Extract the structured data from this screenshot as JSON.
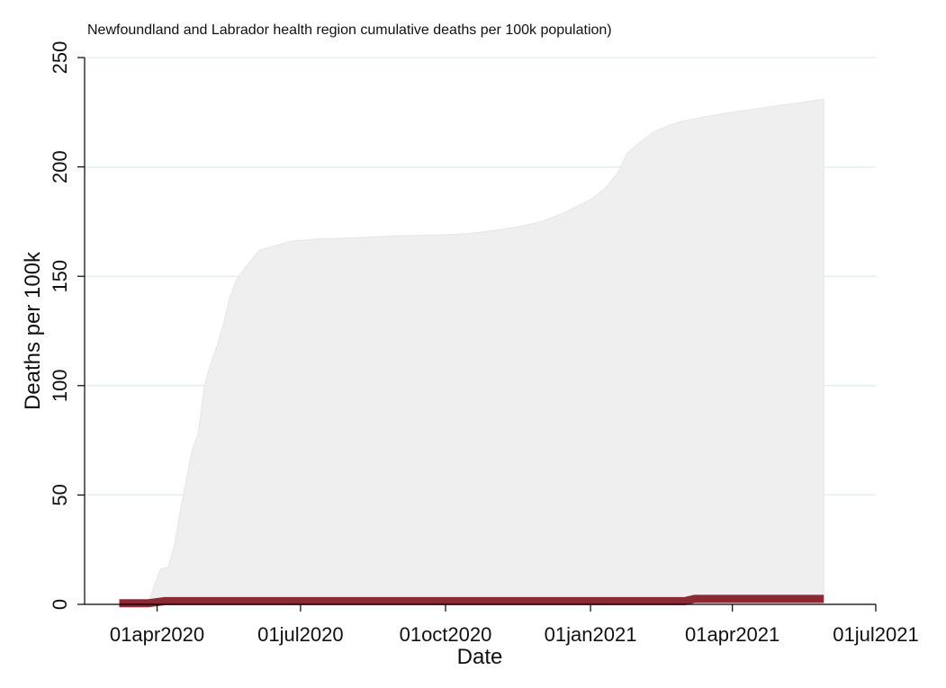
{
  "chart_data": {
    "type": "area",
    "title": "Newfoundland and Labrador health region cumulative deaths per 100k population)",
    "xlabel": "Date",
    "ylabel": "Deaths per 100k",
    "xlim": [
      "2020-02-15",
      "2021-07-01"
    ],
    "ylim": [
      0,
      250
    ],
    "x_ticks": [
      {
        "date": "2020-04-01",
        "label": "01apr2020"
      },
      {
        "date": "2020-07-01",
        "label": "01jul2020"
      },
      {
        "date": "2020-10-01",
        "label": "01oct2020"
      },
      {
        "date": "2021-01-01",
        "label": "01jan2021"
      },
      {
        "date": "2021-04-01",
        "label": "01apr2021"
      },
      {
        "date": "2021-07-01",
        "label": "01jul2021"
      }
    ],
    "y_ticks": [
      0,
      50,
      100,
      150,
      200,
      250
    ],
    "grid": true,
    "colors": {
      "area": "#efefef",
      "area_edge": "#e6e6e6",
      "line": "#8b2a35",
      "grid": "#e3eef0",
      "axis": "#000000"
    },
    "series": [
      {
        "kind": "area",
        "points": [
          [
            "2020-03-26",
            0
          ],
          [
            "2020-03-28",
            4
          ],
          [
            "2020-03-31",
            10
          ],
          [
            "2020-04-03",
            16
          ],
          [
            "2020-04-08",
            17
          ],
          [
            "2020-04-12",
            27
          ],
          [
            "2020-04-15",
            40
          ],
          [
            "2020-04-19",
            55
          ],
          [
            "2020-04-23",
            70
          ],
          [
            "2020-04-27",
            78
          ],
          [
            "2020-05-01",
            100
          ],
          [
            "2020-05-05",
            110
          ],
          [
            "2020-05-09",
            118
          ],
          [
            "2020-05-13",
            128
          ],
          [
            "2020-05-17",
            140
          ],
          [
            "2020-05-21",
            148
          ],
          [
            "2020-05-28",
            155
          ],
          [
            "2020-06-05",
            162
          ],
          [
            "2020-06-15",
            164
          ],
          [
            "2020-06-25",
            166
          ],
          [
            "2020-07-10",
            167
          ],
          [
            "2020-08-01",
            167.5
          ],
          [
            "2020-09-01",
            168.5
          ],
          [
            "2020-10-01",
            169
          ],
          [
            "2020-10-15",
            169.5
          ],
          [
            "2020-11-01",
            171
          ],
          [
            "2020-11-15",
            172.5
          ],
          [
            "2020-12-01",
            175
          ],
          [
            "2020-12-15",
            179
          ],
          [
            "2021-01-01",
            185
          ],
          [
            "2021-01-10",
            190
          ],
          [
            "2021-01-18",
            197
          ],
          [
            "2021-01-24",
            206
          ],
          [
            "2021-02-01",
            211
          ],
          [
            "2021-02-10",
            216
          ],
          [
            "2021-02-20",
            219
          ],
          [
            "2021-03-01",
            221
          ],
          [
            "2021-03-15",
            223
          ],
          [
            "2021-04-01",
            225
          ],
          [
            "2021-04-20",
            227
          ],
          [
            "2021-05-05",
            228.5
          ],
          [
            "2021-05-20",
            230
          ],
          [
            "2021-05-29",
            231
          ]
        ]
      },
      {
        "kind": "line",
        "points": [
          [
            "2020-03-08",
            0.5
          ],
          [
            "2020-03-26",
            0.5
          ],
          [
            "2020-04-06",
            1.5
          ],
          [
            "2021-03-02",
            1.5
          ],
          [
            "2021-03-08",
            2.5
          ],
          [
            "2021-05-29",
            2.5
          ]
        ]
      }
    ]
  }
}
